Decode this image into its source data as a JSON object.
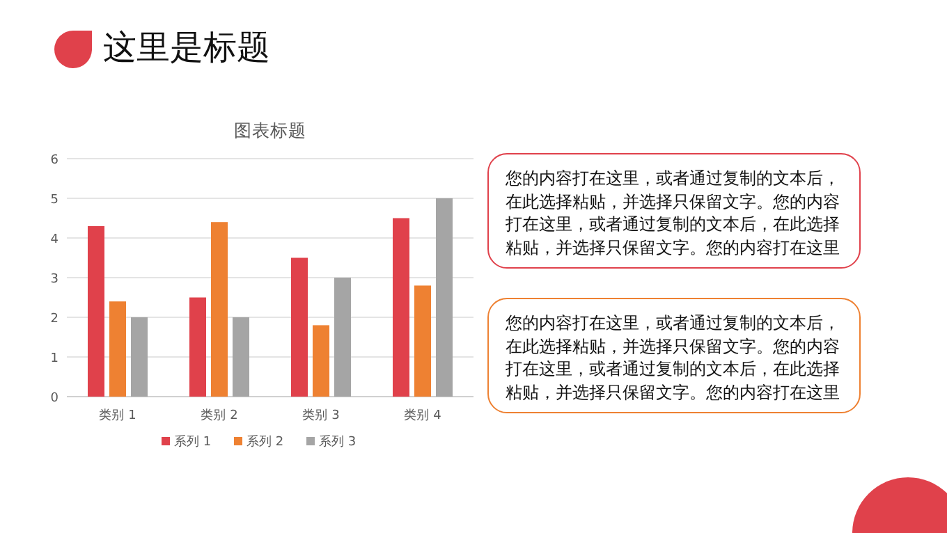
{
  "chart_data": {
    "type": "bar",
    "title": "图表标题",
    "categories": [
      "类别 1",
      "类别 2",
      "类别 3",
      "类别 4"
    ],
    "series": [
      {
        "name": "系列 1",
        "color": "#e0414b",
        "values": [
          4.3,
          2.5,
          3.5,
          4.5
        ]
      },
      {
        "name": "系列 2",
        "color": "#ee8132",
        "values": [
          2.4,
          4.4,
          1.8,
          2.8
        ]
      },
      {
        "name": "系列 3",
        "color": "#a5a5a5",
        "values": [
          2,
          2,
          3,
          5
        ]
      }
    ],
    "ylim": [
      0,
      6
    ],
    "yticks": [
      0,
      1,
      2,
      3,
      4,
      5,
      6
    ],
    "grid": "y",
    "legend": "bottom",
    "annotations": [
      "这里是标题",
      "您的内容打在这里，或者通过复制的文本后，在此选择粘贴，并选择只保留文字。您的内容打在这里，或者通过复制的文本后，在此选择粘贴，并选择只保留文字。您的内容打在这里",
      "您的内容打在这里，或者通过复制的文本后，在此选择粘贴，并选择只保留文字。您的内容打在这里，或者通过复制的文本后，在此选择粘贴，并选择只保留文字。您的内容打在这里"
    ]
  }
}
